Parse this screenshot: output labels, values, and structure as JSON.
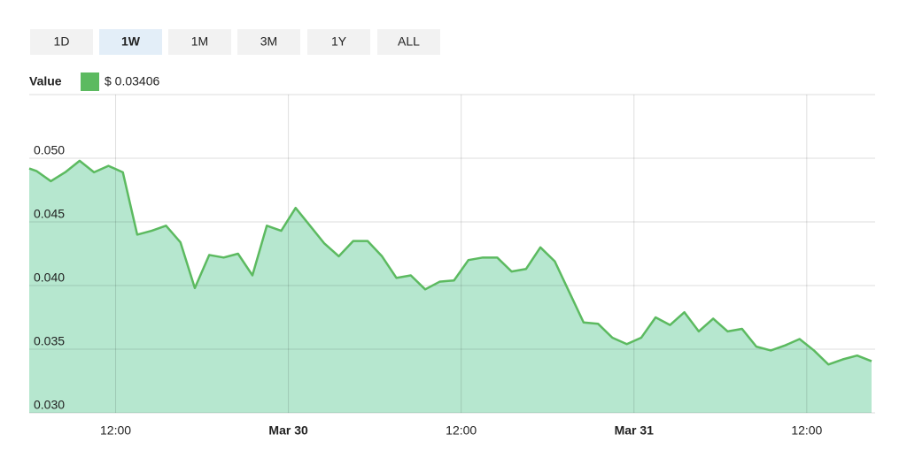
{
  "range_buttons": [
    "1D",
    "1W",
    "1M",
    "3M",
    "1Y",
    "ALL"
  ],
  "active_range_index": 1,
  "chart_data": {
    "type": "area",
    "legend_title": "Value",
    "current_value_label": "$ 0.03406",
    "x": [
      "Mar 29 06:00",
      "Mar 29 06:30",
      "Mar 29 07:30",
      "Mar 29 08:30",
      "Mar 29 09:30",
      "Mar 29 10:30",
      "Mar 29 11:30",
      "Mar 29 12:30",
      "Mar 29 13:30",
      "Mar 29 14:30",
      "Mar 29 15:30",
      "Mar 29 16:30",
      "Mar 29 17:30",
      "Mar 29 18:30",
      "Mar 29 19:30",
      "Mar 29 20:30",
      "Mar 29 21:30",
      "Mar 29 22:30",
      "Mar 29 23:30",
      "Mar 30 00:30",
      "Mar 30 01:30",
      "Mar 30 02:30",
      "Mar 30 03:30",
      "Mar 30 04:30",
      "Mar 30 05:30",
      "Mar 30 06:30",
      "Mar 30 07:30",
      "Mar 30 08:30",
      "Mar 30 09:30",
      "Mar 30 10:30",
      "Mar 30 11:30",
      "Mar 30 12:30",
      "Mar 30 13:30",
      "Mar 30 14:30",
      "Mar 30 15:30",
      "Mar 30 16:30",
      "Mar 30 17:30",
      "Mar 30 18:30",
      "Mar 30 19:30",
      "Mar 30 20:30",
      "Mar 30 21:30",
      "Mar 30 22:30",
      "Mar 30 23:30",
      "Mar 31 00:30",
      "Mar 31 01:30",
      "Mar 31 02:30",
      "Mar 31 03:30",
      "Mar 31 04:30",
      "Mar 31 05:30",
      "Mar 31 06:30",
      "Mar 31 07:30",
      "Mar 31 08:30",
      "Mar 31 09:30",
      "Mar 31 10:30",
      "Mar 31 11:30",
      "Mar 31 12:30",
      "Mar 31 13:30",
      "Mar 31 14:30",
      "Mar 31 15:30",
      "Mar 31 16:30"
    ],
    "series": [
      {
        "name": "Value",
        "color": "#5cba60",
        "fill": "#b6e7cf",
        "values": [
          0.0492,
          0.049,
          0.0482,
          0.0489,
          0.0498,
          0.0489,
          0.0494,
          0.0489,
          0.044,
          0.0443,
          0.0447,
          0.0434,
          0.0398,
          0.0424,
          0.0422,
          0.0425,
          0.0408,
          0.0447,
          0.0443,
          0.0461,
          0.0447,
          0.0433,
          0.0423,
          0.0435,
          0.0435,
          0.0423,
          0.0406,
          0.0408,
          0.0397,
          0.0403,
          0.0404,
          0.042,
          0.0422,
          0.0422,
          0.0411,
          0.0413,
          0.043,
          0.0419,
          0.0395,
          0.0371,
          0.037,
          0.0359,
          0.0354,
          0.0359,
          0.0375,
          0.0369,
          0.0379,
          0.0364,
          0.0374,
          0.0364,
          0.0366,
          0.0352,
          0.0349,
          0.0353,
          0.0358,
          0.0349,
          0.0338,
          0.0342,
          0.0345,
          0.03406
        ]
      }
    ],
    "xlim": [
      "Mar 29 06:00",
      "Mar 31 16:30"
    ],
    "xticks": [
      {
        "value": "Mar 29 12:00",
        "label": "12:00"
      },
      {
        "value": "Mar 30 00:00",
        "label": "Mar 30"
      },
      {
        "value": "Mar 30 12:00",
        "label": "12:00"
      },
      {
        "value": "Mar 31 00:00",
        "label": "Mar 31"
      },
      {
        "value": "Mar 31 12:00",
        "label": "12:00"
      }
    ],
    "ylim": [
      0.03,
      0.055
    ],
    "yticks": [
      {
        "value": 0.03,
        "label": "0.030"
      },
      0.035,
      {
        "value": 0.04,
        "label": "0.040"
      },
      0.045,
      {
        "value": 0.05,
        "label": "0.050"
      }
    ],
    "grid": true
  }
}
